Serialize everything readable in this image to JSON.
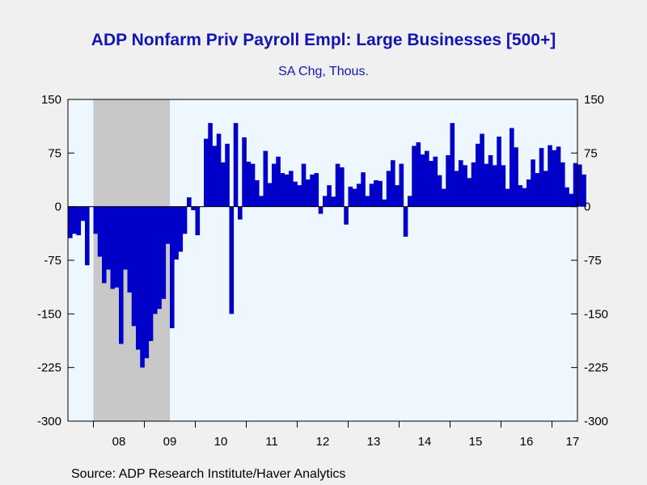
{
  "title": "ADP Nonfarm Priv Payroll Empl: Large Businesses [500+]",
  "subtitle": "SA Chg, Thous.",
  "source": "Source:  ADP Research Institute/Haver Analytics",
  "colors": {
    "bar": "#0000c8",
    "plot_bg": "#eef6fe",
    "recession": "#c8c8c8",
    "title": "#1414b4"
  },
  "chart_data": {
    "type": "bar",
    "title": "ADP Nonfarm Priv Payroll Empl: Large Businesses [500+]",
    "subtitle": "SA Chg, Thous.",
    "ylim": [
      -300,
      150
    ],
    "yticks": [
      150,
      75,
      0,
      -75,
      -150,
      -225,
      -300
    ],
    "ytick_labels": [
      "150",
      "75",
      "0",
      "-75",
      "-150",
      "-225",
      "-300"
    ],
    "x_axis_labels": [
      "08",
      "09",
      "10",
      "11",
      "12",
      "13",
      "14",
      "15",
      "16",
      "17"
    ],
    "x_start": "2007-07",
    "x_end": "2017-07",
    "recession_shading": {
      "start": "2008-01",
      "end": "2009-06"
    },
    "series": [
      {
        "name": "",
        "start": "2007-07",
        "frequency": "monthly",
        "values": [
          -44,
          -38,
          -40,
          -20,
          -82,
          0,
          -38,
          -70,
          -107,
          -88,
          -115,
          -113,
          -192,
          -88,
          -120,
          -167,
          -200,
          -225,
          -212,
          -188,
          -150,
          -143,
          -129,
          -52,
          -170,
          -74,
          -63,
          -38,
          13,
          -5,
          -40,
          0,
          95,
          117,
          85,
          102,
          62,
          88,
          -150,
          117,
          -18,
          97,
          63,
          60,
          37,
          15,
          78,
          33,
          60,
          70,
          47,
          45,
          50,
          35,
          30,
          60,
          38,
          45,
          47,
          -10,
          15,
          30,
          14,
          60,
          55,
          -25,
          28,
          25,
          32,
          48,
          15,
          32,
          37,
          36,
          10,
          50,
          65,
          30,
          60,
          -42,
          15,
          85,
          90,
          73,
          78,
          64,
          70,
          44,
          25,
          72,
          117,
          50,
          65,
          58,
          40,
          62,
          88,
          102,
          60,
          72,
          58,
          98,
          58,
          25,
          110,
          83,
          30,
          26,
          38,
          66,
          47,
          82,
          50,
          86,
          79,
          84,
          62,
          27,
          18,
          61,
          59,
          45
        ]
      }
    ]
  }
}
